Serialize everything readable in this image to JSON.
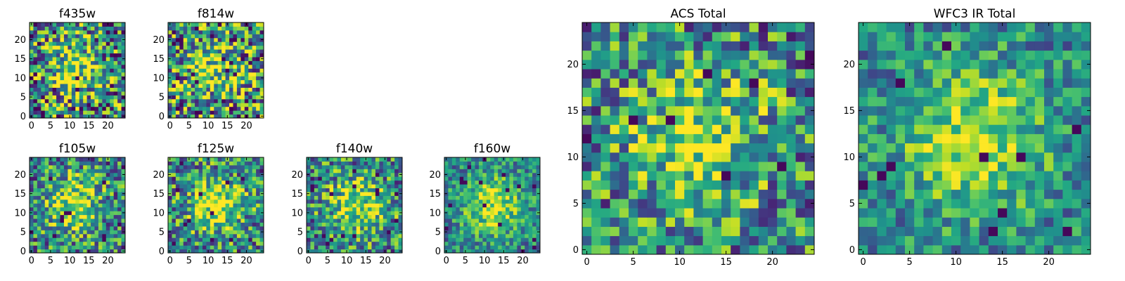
{
  "figure": {
    "background": "#ffffff",
    "colormap": "viridis"
  },
  "chart_data": [
    {
      "type": "heatmap",
      "title": "f435w",
      "size": 25,
      "xlim": [
        0,
        24
      ],
      "ylim": [
        0,
        24
      ],
      "xticks": [
        0,
        5,
        10,
        15,
        20
      ],
      "yticks": [
        0,
        5,
        10,
        15,
        20
      ],
      "blob_center": [
        11,
        12
      ],
      "noise": "high"
    },
    {
      "type": "heatmap",
      "title": "f814w",
      "size": 25,
      "xlim": [
        0,
        24
      ],
      "ylim": [
        0,
        24
      ],
      "xticks": [
        0,
        5,
        10,
        15,
        20
      ],
      "yticks": [
        0,
        5,
        10,
        15,
        20
      ],
      "blob_center": [
        12,
        12
      ],
      "noise": "high"
    },
    {
      "type": "heatmap",
      "title": "f105w",
      "size": 25,
      "xlim": [
        0,
        24
      ],
      "ylim": [
        0,
        24
      ],
      "xticks": [
        0,
        5,
        10,
        15,
        20
      ],
      "yticks": [
        0,
        5,
        10,
        15,
        20
      ],
      "blob_center": [
        11,
        12
      ],
      "noise": "medium"
    },
    {
      "type": "heatmap",
      "title": "f125w",
      "size": 25,
      "xlim": [
        0,
        24
      ],
      "ylim": [
        0,
        24
      ],
      "xticks": [
        0,
        5,
        10,
        15,
        20
      ],
      "yticks": [
        0,
        5,
        10,
        15,
        20
      ],
      "blob_center": [
        12,
        12
      ],
      "noise": "medium"
    },
    {
      "type": "heatmap",
      "title": "f140w",
      "size": 25,
      "xlim": [
        0,
        24
      ],
      "ylim": [
        0,
        24
      ],
      "xticks": [
        0,
        5,
        10,
        15,
        20
      ],
      "yticks": [
        0,
        5,
        10,
        15,
        20
      ],
      "blob_center": [
        13,
        12
      ],
      "noise": "medium"
    },
    {
      "type": "heatmap",
      "title": "f160w",
      "size": 25,
      "xlim": [
        0,
        24
      ],
      "ylim": [
        0,
        24
      ],
      "xticks": [
        0,
        5,
        10,
        15,
        20
      ],
      "yticks": [
        0,
        5,
        10,
        15,
        20
      ],
      "blob_center": [
        12,
        12
      ],
      "noise": "low"
    },
    {
      "type": "heatmap",
      "title": "ACS Total",
      "size": 25,
      "xlim": [
        0,
        24
      ],
      "ylim": [
        0,
        24
      ],
      "xticks": [
        0,
        5,
        10,
        15,
        20
      ],
      "yticks": [
        0,
        5,
        10,
        15,
        20
      ],
      "blob_center": [
        12,
        12
      ],
      "noise": "medium"
    },
    {
      "type": "heatmap",
      "title": "WFC3 IR Total",
      "size": 25,
      "xlim": [
        0,
        24
      ],
      "ylim": [
        0,
        24
      ],
      "xticks": [
        0,
        5,
        10,
        15,
        20
      ],
      "yticks": [
        0,
        5,
        10,
        15,
        20
      ],
      "blob_center": [
        12,
        12
      ],
      "noise": "low"
    }
  ]
}
